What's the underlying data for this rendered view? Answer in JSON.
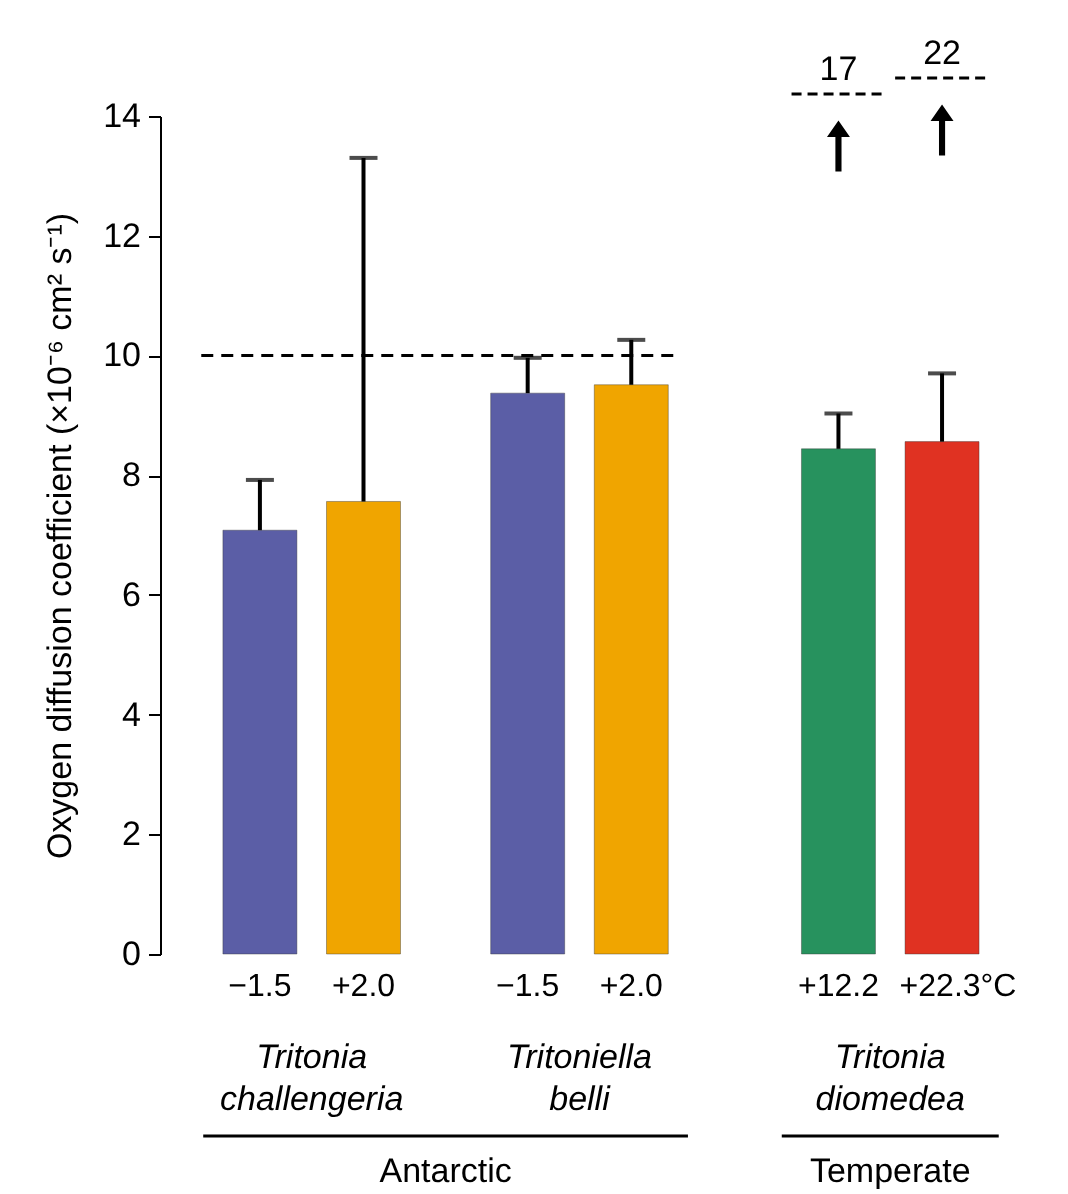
{
  "chart_data": {
    "type": "bar",
    "ylabel": "Oxygen diffusion coefficient (×10⁻⁶ cm² s⁻¹)",
    "categories": [
      "−1.5",
      "+2.0",
      "−1.5",
      "+2.0",
      "+12.2",
      "+22.3°C"
    ],
    "values": [
      7.08,
      7.56,
      9.37,
      9.51,
      8.44,
      8.56
    ],
    "colors": [
      "#5b5ea6",
      "#f0a500",
      "#5b5ea6",
      "#f0a500",
      "#27925e",
      "#e03222"
    ],
    "errors": [
      [
        7.08,
        7.92
      ],
      [
        7.56,
        13.3
      ],
      [
        9.37,
        9.96
      ],
      [
        9.51,
        10.26
      ],
      [
        8.44,
        9.03
      ],
      [
        8.56,
        9.7
      ]
    ],
    "ylim": [
      0,
      14
    ],
    "yticks": [
      0,
      2,
      4,
      6,
      8,
      10,
      12,
      14
    ],
    "ref_lines": [
      {
        "axis": "y",
        "value": 10,
        "line_style": "dashed"
      }
    ],
    "annotations": [
      "17",
      "22",
      "Tritonia challengeria",
      "Tritoniella belli",
      "Tritonia diomedea",
      "Antarctic",
      "Temperate"
    ]
  }
}
